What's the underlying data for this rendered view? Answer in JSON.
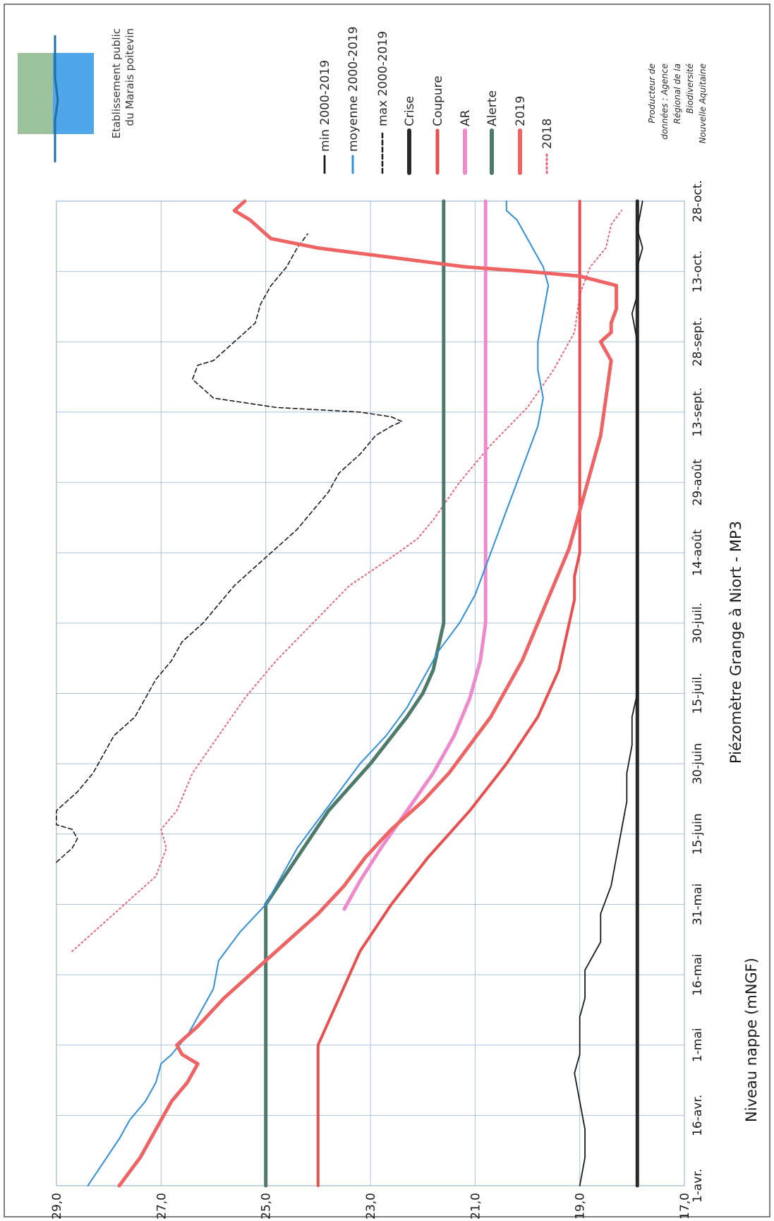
{
  "chart_data": {
    "type": "line",
    "title": "Piézomètre Grange à Niort - MP3",
    "ylabel": "Niveau nappe (mNGF)",
    "ylim": [
      17,
      29
    ],
    "yticks": [
      "29,0",
      "27,0",
      "25,0",
      "23,0",
      "21,0",
      "19,0",
      "17,0"
    ],
    "ytick_values": [
      29,
      27,
      25,
      23,
      21,
      19,
      17
    ],
    "xrange_days": [
      0,
      210
    ],
    "xticks": [
      "1-avr.",
      "16-avr.",
      "1-mai",
      "16-mai",
      "31-mai",
      "15-juin",
      "30-juin",
      "15-juil.",
      "30-juil.",
      "14-août",
      "29-août",
      "13-sept.",
      "28-sept.",
      "13-oct.",
      "28-oct."
    ],
    "xtick_days": [
      0,
      15,
      30,
      45,
      60,
      75,
      90,
      105,
      120,
      135,
      150,
      165,
      180,
      195,
      210
    ],
    "grid": true,
    "orientation": "rotated 90° clockwise (page viewed sideways)",
    "legend_position": "right",
    "series": [
      {
        "name": "2018",
        "style": "dotted",
        "color": "#e8657a",
        "x": [
          50,
          54,
          58,
          62,
          66,
          72,
          76,
          80,
          88,
          96,
          104,
          112,
          120,
          128,
          134,
          138,
          142,
          150,
          158,
          166,
          174,
          182,
          190,
          196,
          200,
          205,
          208
        ],
        "y": [
          28.7,
          28.3,
          27.9,
          27.5,
          27.1,
          26.9,
          27.0,
          26.7,
          26.4,
          25.9,
          25.4,
          24.8,
          24.1,
          23.4,
          22.6,
          22.1,
          21.8,
          21.3,
          20.7,
          20.0,
          19.5,
          19.1,
          19.0,
          18.8,
          18.5,
          18.4,
          18.2
        ]
      },
      {
        "name": "2019",
        "style": "solid",
        "color": "#ee6464",
        "x": [
          0,
          3,
          6,
          10,
          14,
          18,
          22,
          26,
          28,
          30,
          34,
          40,
          46,
          52,
          58,
          64,
          70,
          76,
          82,
          88,
          94,
          100,
          106,
          112,
          120,
          128,
          136,
          144,
          152,
          160,
          168,
          176,
          180,
          182,
          184,
          187,
          190,
          192,
          194,
          195,
          196,
          198,
          200,
          202,
          204,
          206,
          208,
          209,
          210
        ],
        "y": [
          27.8,
          27.6,
          27.4,
          27.2,
          27.0,
          26.8,
          26.5,
          26.3,
          26.6,
          26.7,
          26.3,
          25.8,
          25.2,
          24.6,
          24.0,
          23.5,
          23.1,
          22.6,
          22.0,
          21.5,
          21.1,
          20.7,
          20.4,
          20.1,
          19.8,
          19.5,
          19.2,
          19.0,
          18.8,
          18.6,
          18.5,
          18.4,
          18.6,
          18.4,
          18.4,
          18.3,
          18.3,
          18.3,
          19.0,
          20.0,
          21.2,
          22.6,
          24.0,
          24.9,
          25.1,
          25.3,
          25.6,
          25.5,
          25.4
        ]
      },
      {
        "name": "Alerte",
        "style": "solid",
        "color": "#4d7a6a",
        "x": [
          0,
          60,
          70,
          80,
          90,
          100,
          105,
          110,
          115,
          120,
          210
        ],
        "y": [
          25.0,
          25.0,
          24.4,
          23.8,
          23.0,
          22.3,
          22.0,
          21.8,
          21.7,
          21.6,
          21.6
        ]
      },
      {
        "name": "AR",
        "style": "solid",
        "color": "#ee8acb",
        "x": [
          59,
          65,
          72,
          80,
          88,
          96,
          104,
          112,
          120,
          130,
          210
        ],
        "y": [
          23.5,
          23.2,
          22.8,
          22.3,
          21.8,
          21.4,
          21.1,
          20.9,
          20.8,
          20.8,
          20.8
        ]
      },
      {
        "name": "Coupure",
        "style": "solid",
        "color": "#e85050",
        "x": [
          0,
          30,
          40,
          50,
          60,
          70,
          80,
          90,
          100,
          105,
          110,
          115,
          120,
          125,
          130,
          135,
          140,
          210
        ],
        "y": [
          24.0,
          24.0,
          23.6,
          23.2,
          22.6,
          21.9,
          21.1,
          20.4,
          19.8,
          19.6,
          19.4,
          19.3,
          19.2,
          19.1,
          19.1,
          19.0,
          19.0,
          19.0
        ]
      },
      {
        "name": "Crise",
        "style": "solid",
        "color": "#2a2a2a",
        "x": [
          0,
          210
        ],
        "y": [
          17.9,
          17.9
        ]
      },
      {
        "name": "max 2000-2019",
        "style": "dashed",
        "color": "#1a1a1a",
        "x": [
          69,
          72,
          74,
          76,
          77,
          80,
          84,
          88,
          92,
          96,
          100,
          104,
          108,
          112,
          116,
          120,
          124,
          128,
          132,
          136,
          140,
          144,
          148,
          152,
          156,
          160,
          162,
          163,
          164,
          165,
          166,
          168,
          172,
          175,
          176,
          178,
          181,
          184,
          188,
          192,
          196,
          200,
          203
        ],
        "y": [
          29.0,
          28.7,
          28.6,
          28.7,
          29.0,
          29.0,
          28.6,
          28.3,
          28.1,
          27.9,
          27.5,
          27.3,
          27.1,
          26.8,
          26.6,
          26.2,
          25.9,
          25.6,
          25.2,
          24.8,
          24.4,
          24.1,
          23.8,
          23.6,
          23.2,
          22.9,
          22.6,
          22.4,
          22.6,
          23.2,
          24.8,
          26.0,
          26.4,
          26.3,
          26.0,
          25.8,
          25.5,
          25.2,
          25.1,
          24.9,
          24.6,
          24.4,
          24.2
        ]
      },
      {
        "name": "moyenne 2000-2019",
        "style": "solid",
        "color": "#2f8fdb",
        "x": [
          0,
          5,
          10,
          14,
          18,
          22,
          26,
          28,
          32,
          36,
          42,
          48,
          54,
          60,
          66,
          72,
          78,
          84,
          90,
          96,
          102,
          108,
          114,
          120,
          126,
          132,
          138,
          144,
          150,
          156,
          162,
          168,
          174,
          180,
          186,
          192,
          196,
          200,
          204,
          206,
          208,
          210
        ],
        "y": [
          28.4,
          28.1,
          27.8,
          27.6,
          27.3,
          27.1,
          27.0,
          26.8,
          26.5,
          26.3,
          26.0,
          25.9,
          25.5,
          25.0,
          24.7,
          24.4,
          24.0,
          23.6,
          23.2,
          22.7,
          22.3,
          22.0,
          21.7,
          21.3,
          21.0,
          20.8,
          20.6,
          20.4,
          20.2,
          20.0,
          19.8,
          19.7,
          19.8,
          19.8,
          19.7,
          19.6,
          19.7,
          19.9,
          20.1,
          20.2,
          20.4,
          20.4
        ]
      },
      {
        "name": "min 2000-2019",
        "style": "solid",
        "color": "#1a1a1a",
        "x": [
          0,
          6,
          12,
          18,
          24,
          28,
          32,
          36,
          40,
          46,
          52,
          58,
          64,
          70,
          76,
          82,
          88,
          94,
          100,
          105,
          110,
          120,
          130,
          140,
          150,
          160,
          170,
          180,
          186,
          190,
          196,
          200,
          204,
          210
        ],
        "y": [
          19.0,
          18.9,
          18.9,
          19.0,
          19.1,
          19.0,
          19.0,
          19.0,
          18.9,
          18.9,
          18.6,
          18.6,
          18.4,
          18.3,
          18.2,
          18.1,
          18.1,
          18.0,
          18.0,
          17.9,
          17.9,
          17.9,
          17.9,
          17.9,
          17.9,
          17.9,
          17.9,
          17.9,
          18.0,
          17.9,
          17.9,
          17.8,
          17.9,
          17.8
        ]
      }
    ]
  },
  "legend": {
    "items": [
      "2018",
      "2019",
      "Alerte",
      "AR",
      "Coupure",
      "Crise",
      "max 2000-2019",
      "moyenne 2000-2019",
      "min 2000-2019"
    ]
  },
  "logo": {
    "line1": "Etablissement public",
    "line2": "du Marais poitevin",
    "colors": [
      "#9bc29a",
      "#4fa6e8",
      "#1f6fa6"
    ]
  },
  "credit": {
    "lines": [
      "Producteur de",
      "données : Agence",
      "Régional de la",
      "Biodiversité",
      "Nouvelle Aquitaine"
    ]
  }
}
